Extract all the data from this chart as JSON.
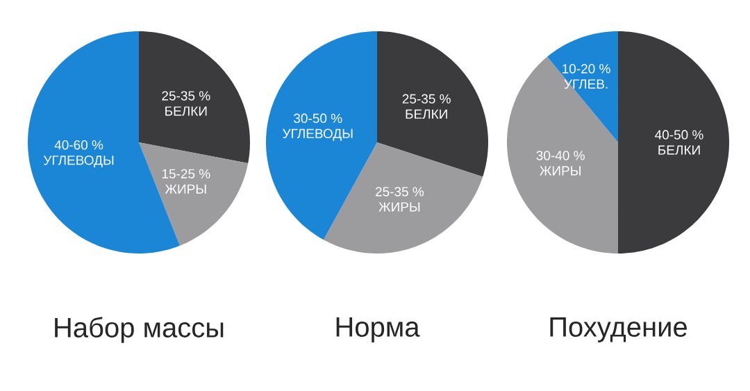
{
  "chart_data": [
    {
      "type": "pie",
      "title": "Набор массы",
      "categories": [
        "БЕЛКИ",
        "ЖИРЫ",
        "УГЛЕВОДЫ"
      ],
      "values": [
        28,
        16,
        56
      ],
      "colors": [
        "#3b3b3d",
        "#9c9c9e",
        "#1b86d6"
      ],
      "annotations": [
        "25-35 %",
        "15-25 %",
        "40-60 %"
      ]
    },
    {
      "type": "pie",
      "title": "Норма",
      "categories": [
        "БЕЛКИ",
        "ЖИРЫ",
        "УГЛЕВОДЫ"
      ],
      "values": [
        30,
        28,
        42
      ],
      "colors": [
        "#3b3b3d",
        "#9c9c9e",
        "#1b86d6"
      ],
      "annotations": [
        "25-35 %",
        "25-35 %",
        "30-50 %"
      ]
    },
    {
      "type": "pie",
      "title": "Похудение",
      "categories": [
        "БЕЛКИ",
        "ЖИРЫ",
        "УГЛЕВ."
      ],
      "values": [
        50,
        39,
        11
      ],
      "colors": [
        "#3b3b3d",
        "#9c9c9e",
        "#1b86d6"
      ],
      "annotations": [
        "40-50 %",
        "30-40 %",
        "10-20 %"
      ]
    }
  ]
}
